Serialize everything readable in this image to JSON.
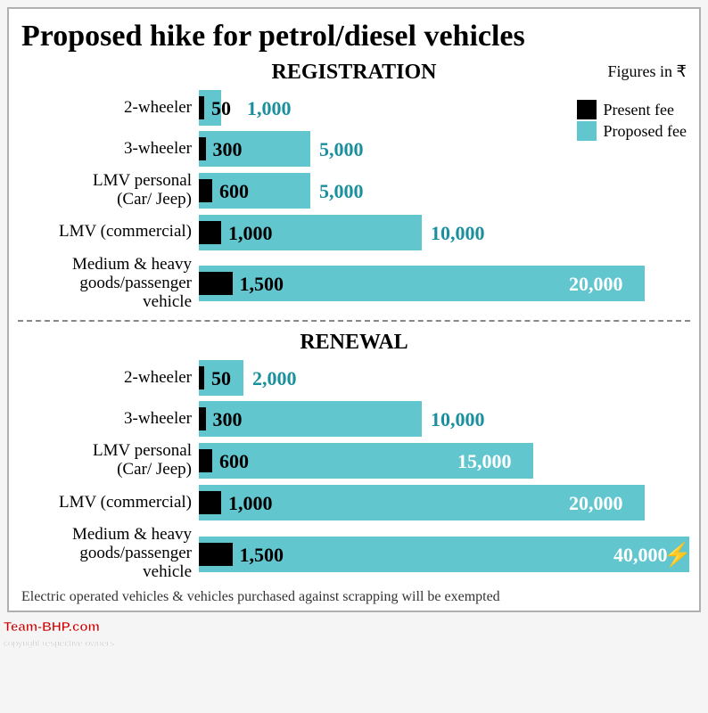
{
  "title": "Proposed hike for petrol/diesel vehicles",
  "footer": "Electric operated vehicles & vehicles purchased against scrapping will be exempted",
  "watermark": "Team-BHP.com",
  "watermark_sub": "copyright respective owners",
  "currency_note": "Figures in ₹",
  "colors": {
    "present": "#000000",
    "proposed": "#62c6cf",
    "text_proposed": "#1a8f9e",
    "background": "#ffffff"
  },
  "legend": {
    "present": "Present fee",
    "proposed": "Proposed fee"
  },
  "max_scale": 22000,
  "sections": [
    {
      "heading": "REGISTRATION",
      "show_legend": true,
      "rows": [
        {
          "label": "2-wheeler",
          "present": 50,
          "proposed": 1000,
          "present_str": "50",
          "proposed_str": "1,000",
          "present_inside": false
        },
        {
          "label": "3-wheeler",
          "present": 300,
          "proposed": 5000,
          "present_str": "300",
          "proposed_str": "5,000",
          "present_inside": false
        },
        {
          "label": "LMV personal\n(Car/ Jeep)",
          "present": 600,
          "proposed": 5000,
          "present_str": "600",
          "proposed_str": "5,000",
          "present_inside": false
        },
        {
          "label": "LMV (commercial)",
          "present": 1000,
          "proposed": 10000,
          "present_str": "1,000",
          "proposed_str": "10,000",
          "present_inside": false
        },
        {
          "label": "Medium & heavy\ngoods/passenger\nvehicle",
          "present": 1500,
          "proposed": 20000,
          "present_str": "1,500",
          "proposed_str": "20,000",
          "present_inside": false,
          "proposed_inside": true
        }
      ]
    },
    {
      "heading": "RENEWAL",
      "show_legend": false,
      "rows": [
        {
          "label": "2-wheeler",
          "present": 50,
          "proposed": 2000,
          "present_str": "50",
          "proposed_str": "2,000",
          "present_inside": false
        },
        {
          "label": "3-wheeler",
          "present": 300,
          "proposed": 10000,
          "present_str": "300",
          "proposed_str": "10,000",
          "present_inside": false
        },
        {
          "label": "LMV personal\n(Car/ Jeep)",
          "present": 600,
          "proposed": 15000,
          "present_str": "600",
          "proposed_str": "15,000",
          "present_inside": false,
          "proposed_inside": true
        },
        {
          "label": "LMV (commercial)",
          "present": 1000,
          "proposed": 20000,
          "present_str": "1,000",
          "proposed_str": "20,000",
          "present_inside": false,
          "proposed_inside": true
        },
        {
          "label": "Medium & heavy\ngoods/passenger\nvehicle",
          "present": 1500,
          "proposed": 40000,
          "present_str": "1,500",
          "proposed_str": "40,000",
          "present_inside": false,
          "proposed_inside": true,
          "broken": true
        }
      ]
    }
  ]
}
